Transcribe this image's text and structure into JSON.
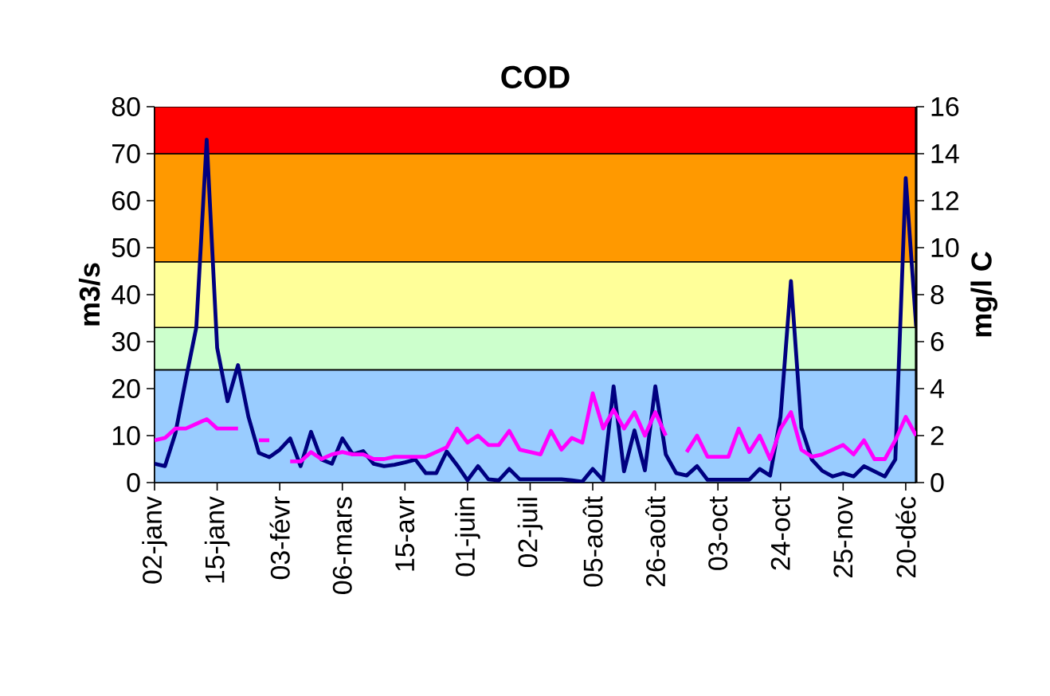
{
  "chart_data": {
    "type": "line",
    "title": "COD",
    "ylabel": "m3/s",
    "y2label": "mg/l C",
    "categories": [
      "02-janv",
      null,
      null,
      null,
      null,
      null,
      "15-janv",
      null,
      null,
      null,
      null,
      null,
      "03-févr",
      null,
      null,
      null,
      null,
      null,
      "06-mars",
      null,
      null,
      null,
      null,
      null,
      "15-avr",
      null,
      null,
      null,
      null,
      null,
      "01-juin",
      null,
      null,
      null,
      null,
      null,
      "02-juil",
      null,
      null,
      null,
      null,
      null,
      "05-août",
      null,
      null,
      null,
      null,
      null,
      "26-août",
      null,
      null,
      null,
      null,
      null,
      "03-oct",
      null,
      null,
      null,
      null,
      null,
      "24-oct",
      null,
      null,
      null,
      null,
      null,
      "25-nov",
      null,
      null,
      null,
      null,
      null,
      "20-déc",
      null
    ],
    "series": [
      {
        "color": "#000080",
        "values": [
          4,
          3.5,
          10.5,
          22,
          33,
          73,
          28.7,
          17.3,
          25,
          14,
          6.3,
          5.4,
          7,
          9.4,
          3.5,
          10.8,
          4.9,
          4,
          9.4,
          6,
          6.7,
          4,
          3.5,
          3.8,
          4.3,
          4.9,
          2,
          2,
          6.6,
          3.7,
          0.5,
          3.5,
          0.7,
          0.5,
          2.9,
          0.7,
          0.7,
          0.7,
          0.7,
          0.7,
          0.5,
          0.2,
          2.9,
          0.5,
          20.5,
          2.4,
          11.1,
          2.6,
          20.5,
          6,
          2,
          1.5,
          3.5,
          0.6,
          0.6,
          0.6,
          0.6,
          0.6,
          2.9,
          1.5,
          14,
          42.9,
          11.7,
          4.9,
          2.5,
          1.3,
          2,
          1.3,
          3.5,
          2.4,
          1.3,
          4.9,
          64.8,
          33.2
        ]
      },
      {
        "color": "#ff00ff",
        "axis": "y2",
        "values": [
          1.8,
          1.9,
          2.3,
          2.3,
          2.5,
          2.7,
          2.3,
          2.3,
          2.3,
          null,
          1.8,
          1.8,
          null,
          0.9,
          0.9,
          1.3,
          1,
          1.2,
          1.3,
          1.2,
          1.2,
          1,
          1,
          1.1,
          1.1,
          1.1,
          1.1,
          1.3,
          1.5,
          2.3,
          1.7,
          2,
          1.6,
          1.6,
          2.2,
          1.4,
          1.3,
          1.2,
          2.2,
          1.4,
          1.9,
          1.7,
          3.8,
          2.3,
          3.1,
          2.3,
          3,
          2,
          3,
          2,
          null,
          1.3,
          2,
          1.1,
          1.1,
          1.1,
          2.3,
          1.3,
          2,
          1,
          2.3,
          3,
          1.4,
          1.1,
          1.2,
          1.4,
          1.6,
          1.2,
          1.8,
          1,
          1,
          1.8,
          2.8,
          2
        ]
      }
    ],
    "ylim": [
      0,
      80
    ],
    "yticks": [
      0,
      10,
      20,
      30,
      40,
      50,
      60,
      70,
      80
    ],
    "y2lim": [
      0,
      16
    ],
    "y2ticks": [
      0,
      2,
      4,
      6,
      8,
      10,
      12,
      14,
      16
    ],
    "bands": [
      {
        "axis": "y",
        "from": 0,
        "to": 24,
        "color": "#99ccff"
      },
      {
        "axis": "y",
        "from": 24,
        "to": 33,
        "color": "#ccffcc"
      },
      {
        "axis": "y",
        "from": 33,
        "to": 47,
        "color": "#ffff99"
      },
      {
        "axis": "y",
        "from": 47,
        "to": 70,
        "color": "#ff9900"
      },
      {
        "axis": "y",
        "from": 70,
        "to": 80,
        "color": "#ff0000"
      }
    ],
    "grid": false,
    "marker": "none",
    "line_style": "solid"
  }
}
